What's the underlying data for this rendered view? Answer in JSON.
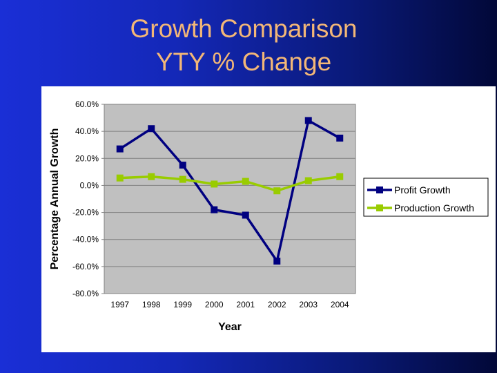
{
  "slide": {
    "title_line1": "Growth Comparison",
    "title_line2": "YTY % Change"
  },
  "colors": {
    "title": "#f3b777",
    "plot_background": "#c0c0c0",
    "profit_series": "#000080",
    "production_series": "#99cc00"
  },
  "chart_data": {
    "type": "line",
    "title": "",
    "xlabel": "Year",
    "ylabel": "Percentage Annual Growth",
    "categories": [
      "1997",
      "1998",
      "1999",
      "2000",
      "2001",
      "2002",
      "2003",
      "2004"
    ],
    "ylim": [
      -80,
      60
    ],
    "yticks": [
      60,
      40,
      20,
      0,
      -20,
      -40,
      -60,
      -80
    ],
    "ytick_labels": [
      "60.0%",
      "40.0%",
      "20.0%",
      "0.0%",
      "-20.0%",
      "-40.0%",
      "-60.0%",
      "-80.0%"
    ],
    "grid": true,
    "legend_position": "right",
    "series": [
      {
        "name": "Profit Growth",
        "values": [
          27,
          42,
          15,
          -18,
          -22,
          -56,
          48,
          35
        ],
        "color": "#000080",
        "marker": "square"
      },
      {
        "name": "Production Growth",
        "values": [
          5.5,
          6.5,
          4.5,
          1,
          3,
          -4,
          3.5,
          6.5
        ],
        "color": "#99cc00",
        "marker": "square"
      }
    ]
  }
}
